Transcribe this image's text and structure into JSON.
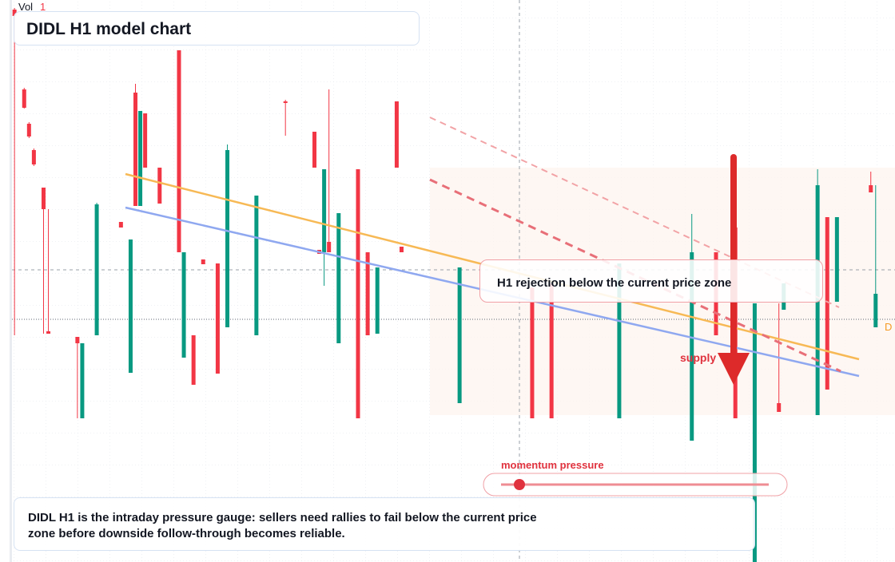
{
  "chart_data": {
    "type": "candlestick",
    "title": "DIDL H1 model chart",
    "volume_label": "Vol",
    "volume_value": "1",
    "annotation": "H1 rejection below the current price zone",
    "zone_label": "supply",
    "gauge_label": "momentum pressure",
    "footer": "DIDL H1 is the intraday pressure gauge: sellers need rallies to fail below the current price zone before downside follow-through becomes reliable.",
    "price_label": "D",
    "up_color": "#089981",
    "down_color": "#f23645",
    "xlim": [
      -2,
      183
    ],
    "ylim": [
      0,
      70.4
    ],
    "x": [
      1,
      3,
      4,
      5,
      7,
      8,
      14,
      15,
      18,
      23,
      25,
      26,
      27,
      28,
      31,
      35,
      36,
      38,
      40,
      43,
      45,
      51,
      57,
      63,
      64,
      65,
      66,
      68,
      72,
      74,
      76,
      80,
      81,
      93,
      108,
      112,
      126,
      141,
      146,
      150,
      154,
      159,
      160,
      167,
      169,
      171,
      178,
      179
    ],
    "open": [
      69.2,
      59.2,
      54.9,
      51.6,
      46.9,
      28.9,
      28.2,
      18.0,
      28.4,
      42.6,
      23.7,
      58.8,
      44.6,
      56.2,
      49.4,
      64.1,
      25.6,
      28.4,
      37.9,
      37.4,
      29.4,
      28.4,
      57.7,
      53.9,
      39.1,
      38.8,
      40.1,
      27.4,
      49.2,
      38.8,
      28.6,
      57.7,
      39.5,
      19.9,
      34.4,
      34.9,
      18.0,
      15.2,
      38.8,
      41.9,
      0.0,
      19.9,
      31.6,
      18.4,
      43.2,
      32.6,
      47.2,
      29.4
    ],
    "close": [
      68.4,
      56.9,
      53.3,
      49.8,
      44.2,
      28.6,
      27.4,
      27.4,
      44.8,
      41.9,
      40.4,
      44.6,
      56.5,
      49.4,
      44.9,
      38.8,
      38.8,
      22.2,
      37.3,
      23.6,
      51.6,
      45.9,
      57.5,
      49.4,
      38.6,
      49.2,
      38.8,
      43.7,
      18.0,
      28.4,
      36.9,
      49.4,
      38.8,
      36.9,
      18.0,
      18.0,
      37.4,
      38.8,
      28.4,
      18.0,
      32.4,
      18.8,
      34.9,
      47.2,
      21.6,
      43.2,
      46.3,
      33.6
    ],
    "high": [
      69.4,
      59.4,
      55.1,
      51.8,
      46.9,
      44.2,
      28.2,
      27.4,
      45.0,
      42.6,
      40.4,
      59.9,
      56.5,
      56.2,
      49.4,
      64.1,
      38.8,
      28.4,
      37.9,
      37.4,
      52.3,
      45.9,
      57.9,
      53.9,
      39.1,
      49.2,
      59.2,
      43.7,
      49.2,
      38.8,
      36.9,
      57.7,
      39.5,
      36.9,
      34.4,
      34.9,
      37.4,
      43.6,
      38.8,
      41.9,
      32.4,
      32.4,
      34.9,
      49.2,
      43.2,
      43.2,
      48.9,
      47.2
    ],
    "low": [
      28.4,
      56.8,
      53.1,
      49.6,
      28.6,
      28.6,
      18.0,
      18.0,
      28.4,
      41.9,
      23.7,
      44.6,
      44.6,
      49.4,
      44.9,
      38.8,
      25.6,
      22.2,
      37.3,
      23.6,
      29.4,
      28.4,
      53.4,
      49.4,
      38.6,
      34.6,
      38.8,
      27.4,
      18.0,
      28.4,
      28.6,
      49.4,
      38.8,
      19.9,
      18.0,
      18.0,
      18.0,
      15.2,
      28.4,
      18.0,
      0.0,
      18.8,
      31.6,
      18.4,
      21.6,
      32.6,
      46.3,
      29.4
    ]
  }
}
